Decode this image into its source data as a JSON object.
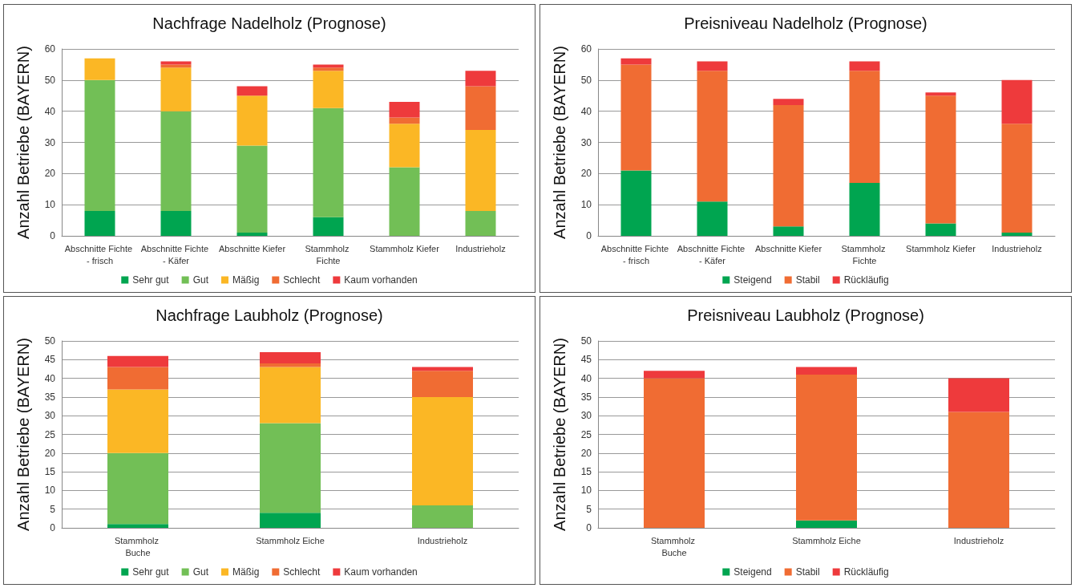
{
  "chart_data": [
    {
      "type": "bar",
      "title": "Nachfrage Nadelholz (Prognose)",
      "ylabel": "Anzahl Betriebe (BAYERN)",
      "categories": [
        "Abschnitte Fichte - frisch",
        "Abschnitte Fichte - Käfer",
        "Abschnitte Kiefer",
        "Stammholz Fichte",
        "Stammholz Kiefer",
        "Industrieholz"
      ],
      "stacked": true,
      "ylim": [
        0,
        60
      ],
      "yticks": [
        0,
        10,
        20,
        30,
        40,
        50,
        60
      ],
      "grid": "y",
      "legend": "bottom",
      "series": [
        {
          "name": "Sehr gut",
          "color": "#00a550",
          "values": [
            8,
            8,
            1,
            6,
            0,
            0
          ]
        },
        {
          "name": "Gut",
          "color": "#72bf56",
          "values": [
            42,
            32,
            28,
            35,
            22,
            8
          ]
        },
        {
          "name": "Mäßig",
          "color": "#fbb725",
          "values": [
            7,
            14,
            16,
            12,
            14,
            26
          ]
        },
        {
          "name": "Schlecht",
          "color": "#f06c33",
          "values": [
            0,
            1,
            0,
            1,
            2,
            14
          ]
        },
        {
          "name": "Kaum vorhanden",
          "color": "#ee3a3c",
          "values": [
            0,
            1,
            3,
            1,
            5,
            5
          ]
        }
      ]
    },
    {
      "type": "bar",
      "title": "Preisniveau Nadelholz (Prognose)",
      "ylabel": "Anzahl Betriebe (BAYERN)",
      "categories": [
        "Abschnitte Fichte - frisch",
        "Abschnitte Fichte - Käfer",
        "Abschnitte Kiefer",
        "Stammholz Fichte",
        "Stammholz Kiefer",
        "Industrieholz"
      ],
      "stacked": true,
      "ylim": [
        0,
        60
      ],
      "yticks": [
        0,
        10,
        20,
        30,
        40,
        50,
        60
      ],
      "grid": "y",
      "legend": "bottom",
      "series": [
        {
          "name": "Steigend",
          "color": "#00a550",
          "values": [
            21,
            11,
            3,
            17,
            4,
            1
          ]
        },
        {
          "name": "Stabil",
          "color": "#f06c33",
          "values": [
            34,
            42,
            39,
            36,
            41,
            35
          ]
        },
        {
          "name": "Rückläufig",
          "color": "#ee3a3c",
          "values": [
            2,
            3,
            2,
            3,
            1,
            14
          ]
        }
      ]
    },
    {
      "type": "bar",
      "title": "Nachfrage Laubholz (Prognose)",
      "ylabel": "Anzahl Betriebe (BAYERN)",
      "categories": [
        "Stammholz Buche",
        "Stammholz Eiche",
        "Industrieholz"
      ],
      "stacked": true,
      "ylim": [
        0,
        50
      ],
      "yticks": [
        0,
        5,
        10,
        15,
        20,
        25,
        30,
        35,
        40,
        45,
        50
      ],
      "grid": "y",
      "legend": "bottom",
      "series": [
        {
          "name": "Sehr gut",
          "color": "#00a550",
          "values": [
            1,
            4,
            0
          ]
        },
        {
          "name": "Gut",
          "color": "#72bf56",
          "values": [
            19,
            24,
            6
          ]
        },
        {
          "name": "Mäßig",
          "color": "#fbb725",
          "values": [
            17,
            15,
            29
          ]
        },
        {
          "name": "Schlecht",
          "color": "#f06c33",
          "values": [
            6,
            1,
            7
          ]
        },
        {
          "name": "Kaum vorhanden",
          "color": "#ee3a3c",
          "values": [
            3,
            3,
            1
          ]
        }
      ]
    },
    {
      "type": "bar",
      "title": "Preisniveau Laubholz (Prognose)",
      "ylabel": "Anzahl Betriebe (BAYERN)",
      "categories": [
        "Stammholz Buche",
        "Stammholz Eiche",
        "Industrieholz"
      ],
      "stacked": true,
      "ylim": [
        0,
        50
      ],
      "yticks": [
        0,
        5,
        10,
        15,
        20,
        25,
        30,
        35,
        40,
        45,
        50
      ],
      "grid": "y",
      "legend": "bottom",
      "series": [
        {
          "name": "Steigend",
          "color": "#00a550",
          "values": [
            0,
            2,
            0
          ]
        },
        {
          "name": "Stabil",
          "color": "#f06c33",
          "values": [
            40,
            39,
            31
          ]
        },
        {
          "name": "Rückläufig",
          "color": "#ee3a3c",
          "values": [
            2,
            2,
            9
          ]
        }
      ]
    }
  ]
}
